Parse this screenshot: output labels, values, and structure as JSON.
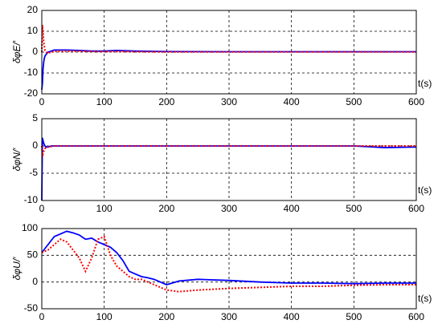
{
  "chart_data": [
    {
      "type": "line",
      "ylabel": "δφE/′",
      "xlabel": "t(s)",
      "x": [
        0,
        1,
        2,
        3,
        4,
        5,
        7,
        10,
        15,
        20,
        30,
        40,
        60,
        80,
        100,
        120,
        150,
        200,
        300,
        400,
        500,
        600
      ],
      "series": [
        {
          "color": "#0000ff",
          "style": "solid",
          "values": [
            -18,
            -15,
            -8,
            -5,
            -3,
            -2,
            -1,
            0,
            0.5,
            1,
            1,
            1,
            0.8,
            0.5,
            0.5,
            0.8,
            0.5,
            0.3,
            0.2,
            0.2,
            0.2,
            0.2
          ]
        },
        {
          "color": "#ff0000",
          "style": "dotted",
          "values": [
            0,
            13,
            10,
            5,
            3,
            1,
            0,
            -0.5,
            0,
            0.3,
            0.5,
            0.5,
            0.5,
            0.3,
            0.3,
            0.3,
            0.2,
            0.1,
            0.1,
            0.1,
            0.1,
            0.1
          ]
        }
      ],
      "xlim": [
        0,
        600
      ],
      "xticks": [
        0,
        100,
        200,
        300,
        400,
        500,
        600
      ],
      "ylim": [
        -20,
        20
      ],
      "yticks": [
        -20,
        -10,
        0,
        10,
        20
      ],
      "grid": true
    },
    {
      "type": "line",
      "ylabel": "δφN/′",
      "xlabel": "t(s)",
      "x": [
        0,
        1,
        2,
        3,
        4,
        5,
        7,
        10,
        15,
        20,
        30,
        40,
        60,
        80,
        100,
        120,
        150,
        200,
        300,
        400,
        500,
        550,
        600
      ],
      "series": [
        {
          "color": "#0000ff",
          "style": "solid",
          "values": [
            -10,
            1.5,
            1,
            0.5,
            0.3,
            0,
            -0.2,
            -0.2,
            0,
            0,
            0,
            0,
            0,
            0,
            0,
            0,
            0,
            0,
            0,
            0,
            0,
            -0.3,
            -0.2
          ]
        },
        {
          "color": "#ff0000",
          "style": "dotted",
          "values": [
            0,
            -2,
            -1.5,
            -1,
            -0.8,
            -0.5,
            -0.3,
            -0.2,
            -0.1,
            0,
            0,
            0,
            0,
            0,
            0,
            0,
            0,
            0,
            0,
            0,
            0,
            0,
            0
          ]
        }
      ],
      "xlim": [
        0,
        600
      ],
      "xticks": [
        0,
        100,
        200,
        300,
        400,
        500,
        600
      ],
      "ylim": [
        -10,
        5
      ],
      "yticks": [
        -10,
        -5,
        0,
        5
      ],
      "grid": true
    },
    {
      "type": "line",
      "ylabel": "δφU/′",
      "xlabel": "t(s)",
      "x": [
        0,
        10,
        20,
        30,
        40,
        50,
        60,
        70,
        80,
        90,
        100,
        110,
        120,
        130,
        140,
        150,
        160,
        170,
        180,
        190,
        200,
        220,
        250,
        300,
        350,
        400,
        450,
        500,
        550,
        600
      ],
      "series": [
        {
          "color": "#0000ff",
          "style": "solid",
          "values": [
            55,
            70,
            85,
            90,
            95,
            92,
            88,
            80,
            82,
            75,
            70,
            65,
            55,
            40,
            20,
            15,
            10,
            8,
            5,
            0,
            -5,
            2,
            5,
            3,
            0,
            -2,
            -2,
            -3,
            -2,
            -2
          ]
        },
        {
          "color": "#ff0000",
          "style": "dotted",
          "values": [
            55,
            60,
            70,
            80,
            75,
            60,
            45,
            20,
            45,
            80,
            85,
            50,
            30,
            20,
            10,
            5,
            5,
            0,
            -5,
            -10,
            -15,
            -18,
            -15,
            -12,
            -10,
            -8,
            -8,
            -6,
            -5,
            -5
          ]
        }
      ],
      "xlim": [
        0,
        600
      ],
      "xticks": [
        0,
        100,
        200,
        300,
        400,
        500,
        600
      ],
      "ylim": [
        -50,
        100
      ],
      "yticks": [
        -50,
        0,
        50,
        100
      ],
      "grid": true
    }
  ]
}
